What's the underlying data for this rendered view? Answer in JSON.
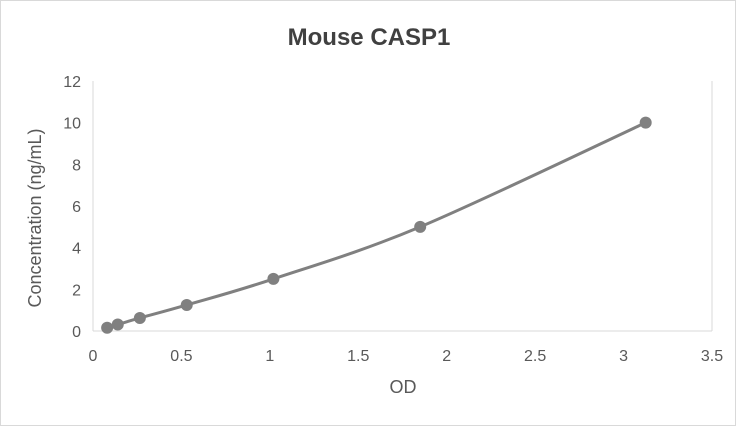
{
  "chart_data": {
    "type": "scatter",
    "title": "Mouse CASP1",
    "xlabel": "OD",
    "ylabel": "Concentration (ng/mL)",
    "xlim": [
      0,
      3.5
    ],
    "ylim": [
      0,
      12
    ],
    "xticks": [
      "0",
      "0.5",
      "1",
      "1.5",
      "2",
      "2.5",
      "3",
      "3.5"
    ],
    "yticks": [
      "0",
      "2",
      "4",
      "6",
      "8",
      "10",
      "12"
    ],
    "grid": false,
    "legend": "none",
    "smooth_line": true,
    "color": "#808080",
    "points": [
      {
        "x": 0.08,
        "y": 0.156
      },
      {
        "x": 0.14,
        "y": 0.312
      },
      {
        "x": 0.265,
        "y": 0.625
      },
      {
        "x": 0.53,
        "y": 1.25
      },
      {
        "x": 1.02,
        "y": 2.5
      },
      {
        "x": 1.85,
        "y": 5
      },
      {
        "x": 3.125,
        "y": 10
      }
    ]
  }
}
